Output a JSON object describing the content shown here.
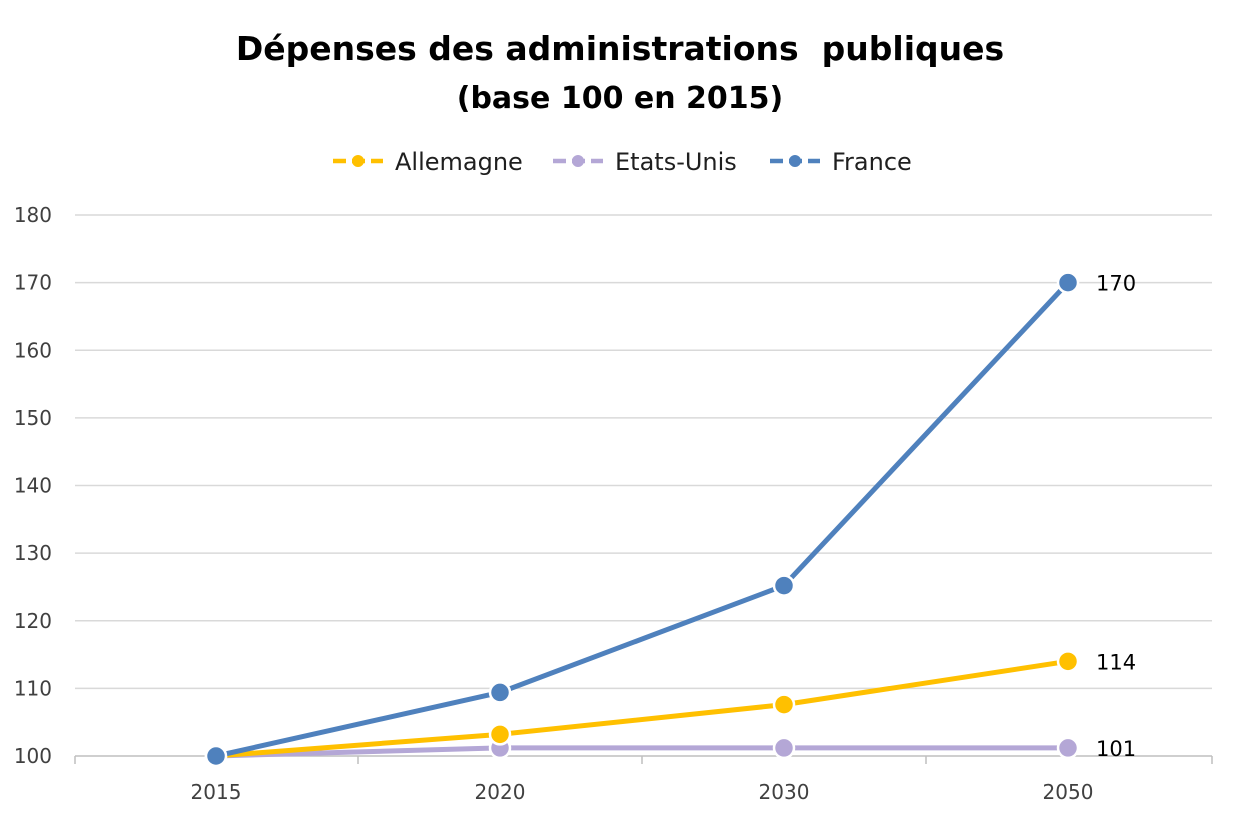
{
  "chart_data": {
    "type": "line",
    "title": "Dépenses des administrations  publiques",
    "subtitle": "(base 100 en 2015)",
    "categories": [
      "2015",
      "2020",
      "2030",
      "2050"
    ],
    "ylim": [
      100,
      180
    ],
    "yticks": [
      100,
      110,
      120,
      130,
      140,
      150,
      160,
      170,
      180
    ],
    "grid": true,
    "legend_position": "top",
    "series": [
      {
        "name": "Allemagne",
        "color": "#ffc000",
        "values": [
          100,
          103.2,
          107.6,
          114
        ],
        "end_label": "114"
      },
      {
        "name": "Etats-Unis",
        "color": "#b4a7d6",
        "values": [
          100,
          101.2,
          101.2,
          101.2
        ],
        "end_label": "101"
      },
      {
        "name": "France",
        "color": "#4f81bd",
        "values": [
          100,
          109.4,
          125.2,
          170
        ],
        "end_label": "170"
      }
    ]
  }
}
